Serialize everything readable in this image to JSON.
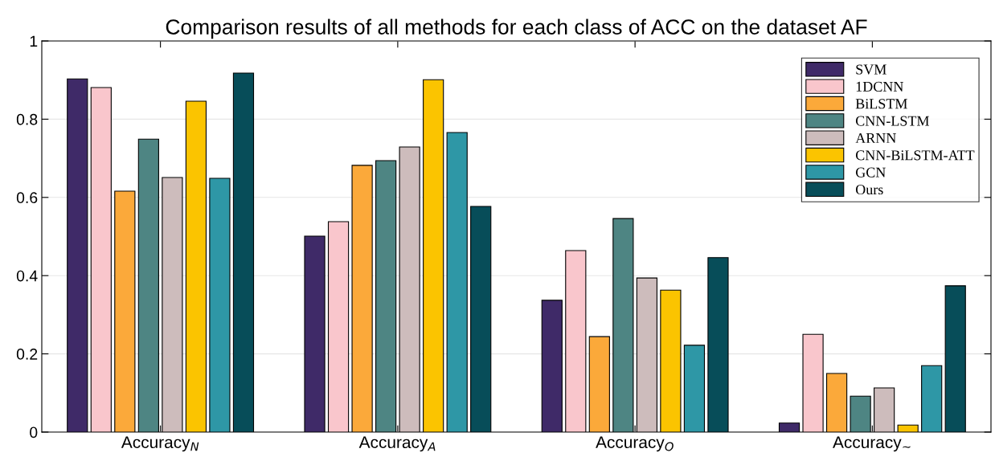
{
  "chart_data": {
    "type": "bar",
    "title": "Comparison results of all methods for each class of ACC on the dataset AF",
    "categories": [
      "Accuracy$_{N}$",
      "Accuracy$_{A}$",
      "Accuracy$_{O}$",
      "Accuracy$_{∼}$"
    ],
    "series": [
      {
        "name": "SVM",
        "color": "#3f2a68",
        "values": [
          0.903,
          0.501,
          0.337,
          0.023
        ]
      },
      {
        "name": "1DCNN",
        "color": "#f9c6cc",
        "values": [
          0.881,
          0.538,
          0.464,
          0.25
        ]
      },
      {
        "name": "BiLSTM",
        "color": "#fba93a",
        "values": [
          0.616,
          0.682,
          0.244,
          0.15
        ]
      },
      {
        "name": "CNN-LSTM",
        "color": "#4e8583",
        "values": [
          0.749,
          0.694,
          0.546,
          0.092
        ]
      },
      {
        "name": "ARNN",
        "color": "#cdbcbc",
        "values": [
          0.651,
          0.729,
          0.394,
          0.113
        ]
      },
      {
        "name": "CNN-BiLSTM-ATT",
        "color": "#fbc400",
        "values": [
          0.846,
          0.901,
          0.363,
          0.018
        ]
      },
      {
        "name": "GCN",
        "color": "#2e97a6",
        "values": [
          0.649,
          0.766,
          0.222,
          0.17
        ]
      },
      {
        "name": "Ours",
        "color": "#074d59",
        "values": [
          0.918,
          0.577,
          0.446,
          0.374
        ]
      }
    ],
    "ylim": [
      0,
      1
    ],
    "yticks": [
      0,
      0.2,
      0.4,
      0.6,
      0.8,
      1
    ],
    "grid": "y",
    "legend": "top right"
  }
}
